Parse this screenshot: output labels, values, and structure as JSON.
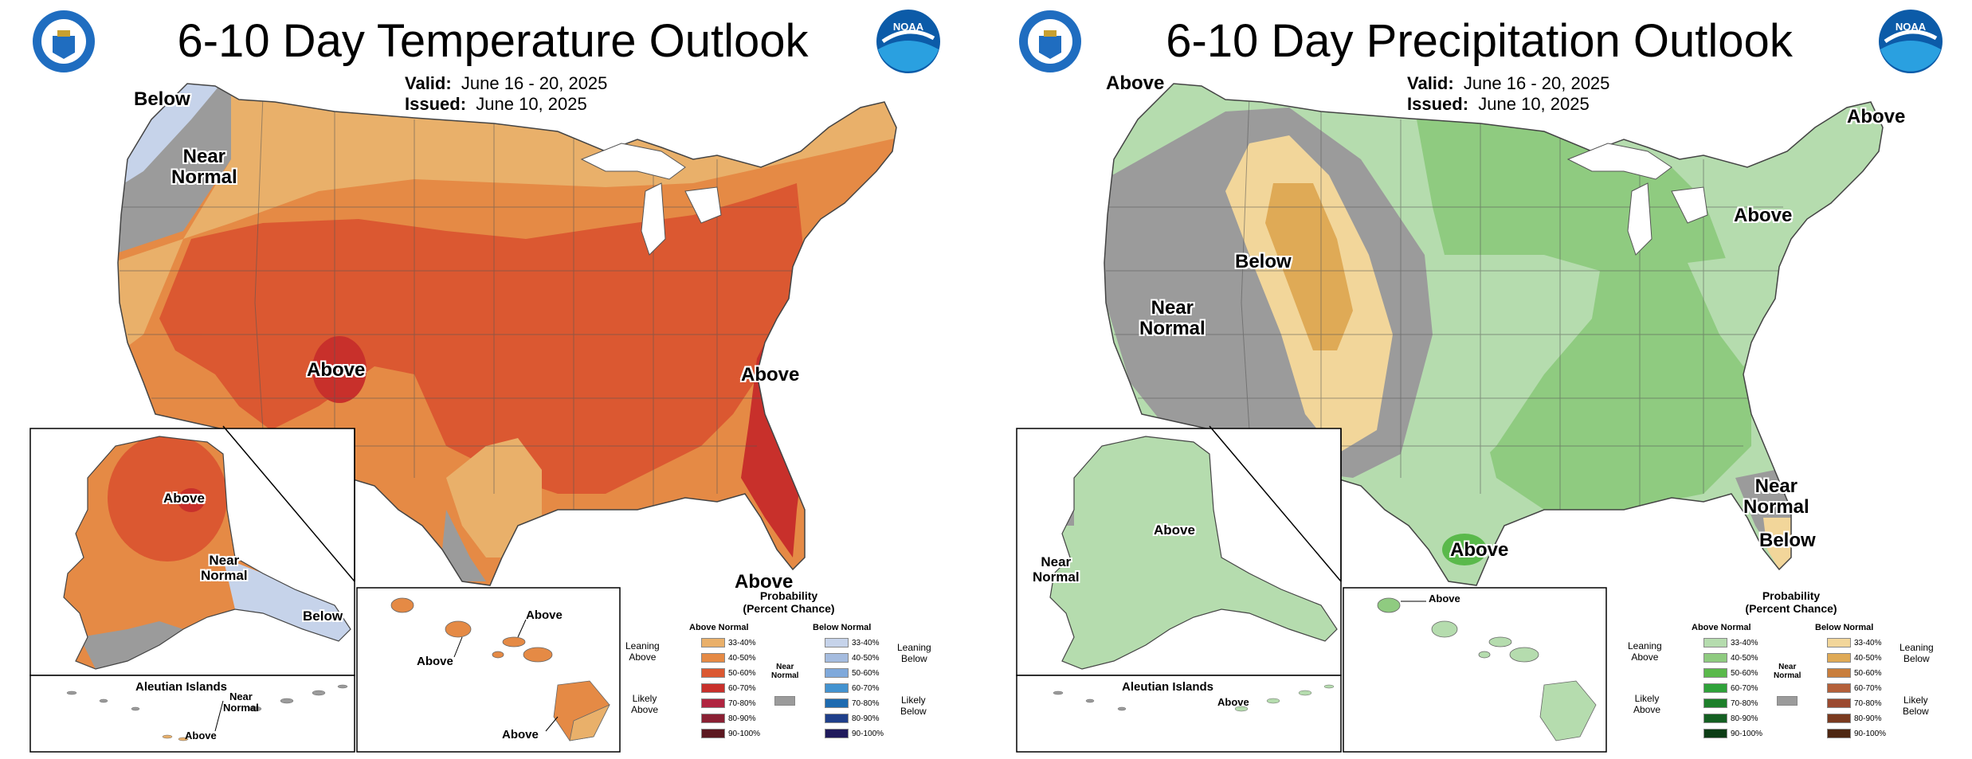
{
  "temperature": {
    "title": "6-10 Day Temperature Outlook",
    "valid_label": "Valid:",
    "valid_value": "June 16 - 20, 2025",
    "issued_label": "Issued:",
    "issued_value": "June 10, 2025",
    "map_labels": {
      "below": "Below",
      "near_normal_1": "Near",
      "near_normal_2": "Normal",
      "above_sw": "Above",
      "above_se": "Above",
      "above_fl": "Above"
    },
    "alaska_labels": {
      "above": "Above",
      "near_1": "Near",
      "near_2": "Normal",
      "below": "Below"
    },
    "aleutian_title": "Aleutian Islands",
    "aleutian_labels": {
      "near_1": "Near",
      "near_2": "Normal",
      "above": "Above"
    },
    "hawaii_labels": {
      "above_1": "Above",
      "above_2": "Above",
      "above_3": "Above"
    },
    "legend": {
      "title_1": "Probability",
      "title_2": "(Percent Chance)",
      "above_head": "Above Normal",
      "below_head": "Below Normal",
      "near_normal_1": "Near",
      "near_normal_2": "Normal",
      "leaning_above_1": "Leaning",
      "leaning_above_2": "Above",
      "likely_above_1": "Likely",
      "likely_above_2": "Above",
      "leaning_below_1": "Leaning",
      "leaning_below_2": "Below",
      "likely_below_1": "Likely",
      "likely_below_2": "Below",
      "above_rows": [
        {
          "pct": "33-40%",
          "color": "#e9b06a"
        },
        {
          "pct": "40-50%",
          "color": "#e58a45"
        },
        {
          "pct": "50-60%",
          "color": "#db5831"
        },
        {
          "pct": "60-70%",
          "color": "#c8302b"
        },
        {
          "pct": "70-80%",
          "color": "#b02540"
        },
        {
          "pct": "80-90%",
          "color": "#8a2033"
        },
        {
          "pct": "90-100%",
          "color": "#5c1820"
        }
      ],
      "below_rows": [
        {
          "pct": "33-40%",
          "color": "#c6d3ea"
        },
        {
          "pct": "40-50%",
          "color": "#a5bcdf"
        },
        {
          "pct": "50-60%",
          "color": "#7fa9db"
        },
        {
          "pct": "60-70%",
          "color": "#4393d0"
        },
        {
          "pct": "70-80%",
          "color": "#1e6bb0"
        },
        {
          "pct": "80-90%",
          "color": "#1f3f8a"
        },
        {
          "pct": "90-100%",
          "color": "#201a5c"
        }
      ],
      "near_color": "#9b9b9b"
    }
  },
  "precipitation": {
    "title": "6-10 Day Precipitation Outlook",
    "valid_label": "Valid:",
    "valid_value": "June 16 - 20, 2025",
    "issued_label": "Issued:",
    "issued_value": "June 10, 2025",
    "map_labels": {
      "above_nw": "Above",
      "above_ne": "Above",
      "above_gl": "Above",
      "below_west": "Below",
      "near_1": "Near",
      "near_2": "Normal",
      "above_tx": "Above",
      "near_fl_1": "Near",
      "near_fl_2": "Normal",
      "below_fl": "Below"
    },
    "alaska_labels": {
      "above": "Above",
      "near_1": "Near",
      "near_2": "Normal"
    },
    "aleutian_title": "Aleutian Islands",
    "aleutian_labels": {
      "above": "Above"
    },
    "hawaii_labels": {
      "above": "Above"
    },
    "legend": {
      "title_1": "Probability",
      "title_2": "(Percent Chance)",
      "above_head": "Above Normal",
      "below_head": "Below Normal",
      "near_normal_1": "Near",
      "near_normal_2": "Normal",
      "leaning_above_1": "Leaning",
      "leaning_above_2": "Above",
      "likely_above_1": "Likely",
      "likely_above_2": "Above",
      "leaning_below_1": "Leaning",
      "leaning_below_2": "Below",
      "likely_below_1": "Likely",
      "likely_below_2": "Below",
      "above_rows": [
        {
          "pct": "33-40%",
          "color": "#b5dcae"
        },
        {
          "pct": "40-50%",
          "color": "#8fcb80"
        },
        {
          "pct": "50-60%",
          "color": "#5ab94b"
        },
        {
          "pct": "60-70%",
          "color": "#2fa23a"
        },
        {
          "pct": "70-80%",
          "color": "#1d7f2a"
        },
        {
          "pct": "80-90%",
          "color": "#145f22"
        },
        {
          "pct": "90-100%",
          "color": "#0c3d15"
        }
      ],
      "below_rows": [
        {
          "pct": "33-40%",
          "color": "#f2d69a"
        },
        {
          "pct": "40-50%",
          "color": "#dfaa56"
        },
        {
          "pct": "50-60%",
          "color": "#c97e3c"
        },
        {
          "pct": "60-70%",
          "color": "#b4603a"
        },
        {
          "pct": "70-80%",
          "color": "#9b4a30"
        },
        {
          "pct": "80-90%",
          "color": "#7a3a1f"
        },
        {
          "pct": "90-100%",
          "color": "#4e2712"
        }
      ],
      "near_color": "#9b9b9b"
    }
  }
}
